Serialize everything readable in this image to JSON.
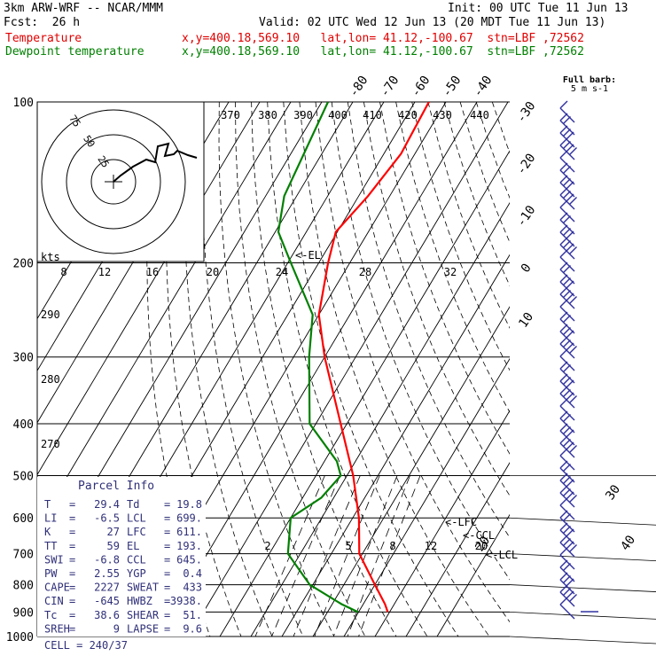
{
  "header": {
    "title": "3km ARW-WRF -- NCAR/MMM",
    "init": "Init: 00 UTC Tue 11 Jun 13",
    "fcst": "Fcst:  26 h",
    "valid": "Valid: 02 UTC Wed 12 Jun 13 (20 MDT Tue 11 Jun 13)",
    "temp_label": "Temperature",
    "temp_loc": "x,y=400.18,569.10   lat,lon= 41.12,-100.67  stn=LBF ,72562",
    "dew_label": "Dewpoint temperature",
    "dew_loc": "x,y=400.18,569.10   lat,lon= 41.12,-100.67  stn=LBF ,72562"
  },
  "colors": {
    "temperature": "#ff0000",
    "dewpoint": "#008000",
    "hodograph": "#000000",
    "barbs": "#3030a0"
  },
  "chart_data": {
    "type": "line",
    "yscale": "log-pressure",
    "ylim": [
      1000,
      100
    ],
    "pressure_ticks": [
      "100",
      "200",
      "300",
      "400",
      "500",
      "600",
      "700",
      "800",
      "900",
      "1000"
    ],
    "isotherm_labels": [
      "-80",
      "-70",
      "-60",
      "-50",
      "-40",
      "-30",
      "-20",
      "-10",
      "0",
      "10",
      "20",
      "30",
      "40"
    ],
    "mixing_ratio_labels": [
      "2",
      "5",
      "8",
      "12",
      "20"
    ],
    "theta_top_labels": [
      "370",
      "380",
      "390",
      "400",
      "410",
      "420",
      "430",
      "440"
    ],
    "theta_side_labels": [
      "290",
      "280",
      "270"
    ],
    "barb_legend": "Full barb:\n5 m s-1",
    "series": [
      {
        "name": "Temperature",
        "units": "C",
        "points": [
          [
            100,
            -55.5
          ],
          [
            125,
            -54.5
          ],
          [
            150,
            -57
          ],
          [
            175,
            -60.5
          ],
          [
            200,
            -57
          ],
          [
            250,
            -50
          ],
          [
            300,
            -40
          ],
          [
            400,
            -22
          ],
          [
            500,
            -8
          ],
          [
            600,
            2
          ],
          [
            700,
            9
          ],
          [
            800,
            20
          ],
          [
            870,
            27
          ],
          [
            900,
            29.4
          ]
        ]
      },
      {
        "name": "Dewpoint temperature",
        "units": "C",
        "points": [
          [
            100,
            -88
          ],
          [
            150,
            -84
          ],
          [
            175,
            -79
          ],
          [
            200,
            -69
          ],
          [
            250,
            -52
          ],
          [
            300,
            -45
          ],
          [
            400,
            -32
          ],
          [
            470,
            -16
          ],
          [
            500,
            -12
          ],
          [
            550,
            -14
          ],
          [
            600,
            -20
          ],
          [
            700,
            -14
          ],
          [
            800,
            -1
          ],
          [
            870,
            13
          ],
          [
            900,
            19.8
          ]
        ]
      }
    ],
    "hodograph": {
      "speed_rings": [
        "25",
        "50",
        "75"
      ],
      "speed_unit": "kts",
      "speed_axis_labels": [
        "8",
        "12",
        "16",
        "20",
        "24",
        "28",
        "32"
      ],
      "markers": [
        "<-EL",
        "<-LFC",
        "<-CCL",
        "<-LCL"
      ]
    },
    "parcel_info": {
      "title": "Parcel Info",
      "rows": [
        [
          "T",
          "29.4",
          "Td",
          "19.8"
        ],
        [
          "LI",
          "-6.5",
          "LCL",
          "699."
        ],
        [
          "K",
          "27",
          "LFC",
          "611."
        ],
        [
          "TT",
          "59",
          "EL",
          "193."
        ],
        [
          "SWI",
          "-6.8",
          "CCL",
          "645."
        ],
        [
          "PW",
          "2.55",
          "YGP",
          "0.4"
        ],
        [
          "CAPE",
          "2227",
          "SWEAT",
          "433"
        ],
        [
          "CIN",
          "-645",
          "HWBZ",
          "3938."
        ],
        [
          "Tc",
          "38.6",
          "SHEAR",
          "51."
        ],
        [
          "SREH",
          "9",
          "LAPSE",
          "9.6"
        ]
      ],
      "cell": "CELL = 240/37"
    }
  }
}
